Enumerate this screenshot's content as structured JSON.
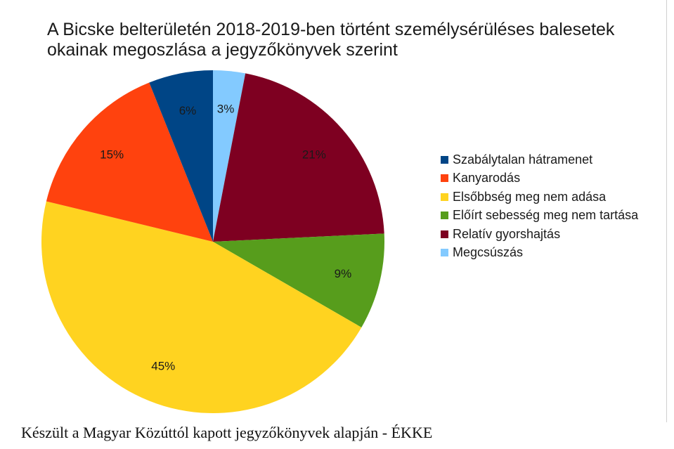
{
  "chart_data": {
    "type": "pie",
    "title": "A Bicske belterületén 2018-2019-ben történt személysérüléses balesetek okainak megoszlása a jegyzőkönyvek szerint",
    "title_lines": [
      "A Bicske belterületén 2018-2019-ben történt személysérüléses balesetek",
      "okainak megoszlása a jegyzőkönyvek szerint"
    ],
    "categories": [
      "Szabálytalan hátramenet",
      "Kanyarodás",
      "Elsőbbség meg nem adása",
      "Előírt sebesség meg nem tartása",
      "Relatív gyorshajtás",
      "Megcsúszás"
    ],
    "values": [
      6,
      15,
      45,
      9,
      21,
      3
    ],
    "value_labels": [
      "6%",
      "15%",
      "45%",
      "9%",
      "21%",
      "3%"
    ],
    "colors": [
      "#004586",
      "#ff420e",
      "#ffd320",
      "#579d1c",
      "#7e0021",
      "#83caff"
    ],
    "legend_position": "right"
  },
  "caption": "Készült a Magyar Közúttól kapott jegyzőkönyvek alapján - ÉKKE"
}
